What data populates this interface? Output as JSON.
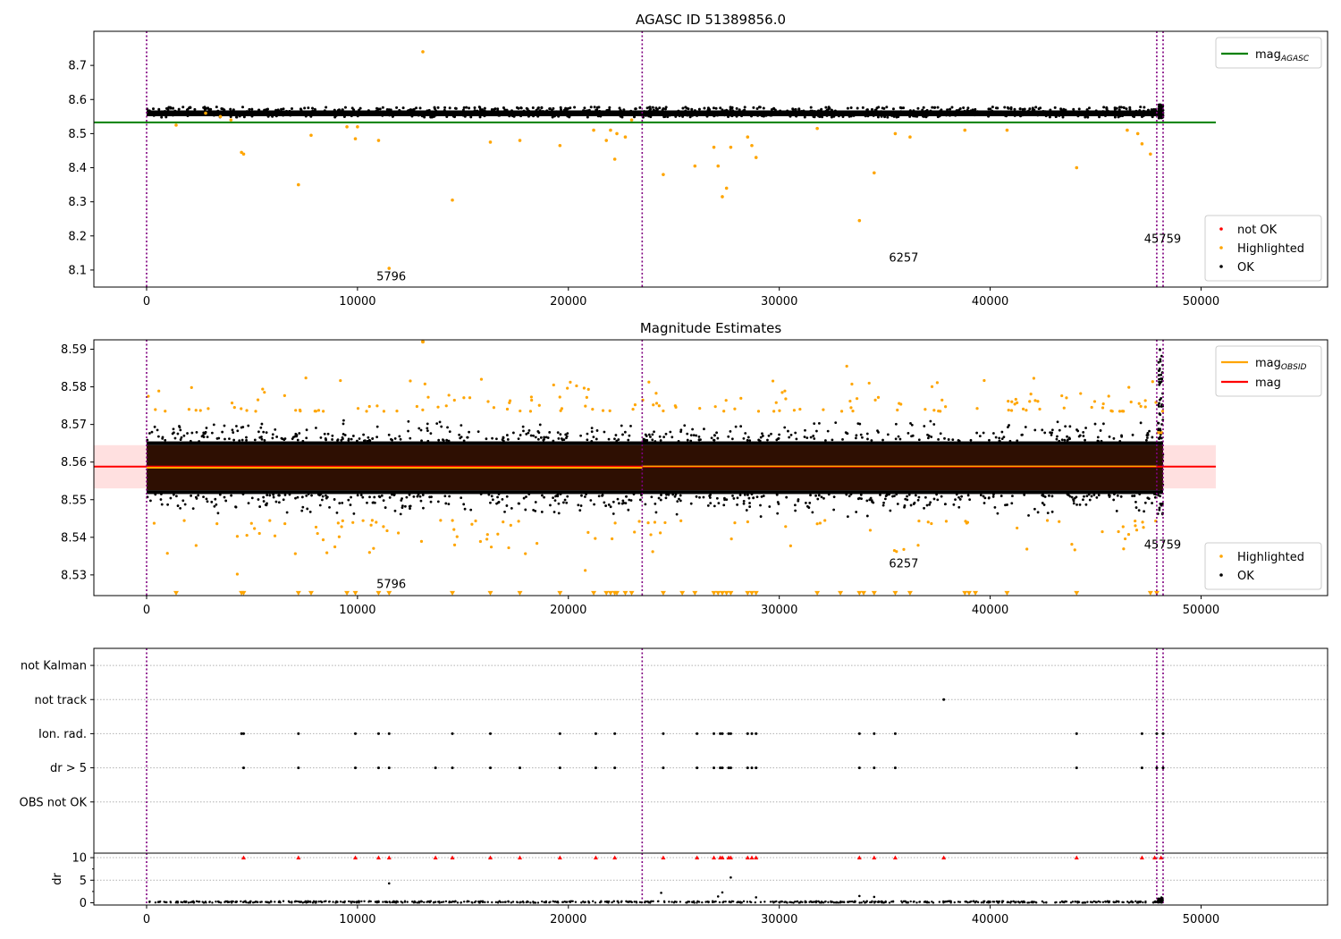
{
  "chart_data": [
    {
      "id": "p1",
      "type": "scatter",
      "title": "AGASC ID 51389856.0",
      "xlim": [
        -2500,
        56000
      ],
      "ylim": [
        8.05,
        8.8
      ],
      "x_ticks": [
        0,
        10000,
        20000,
        30000,
        40000,
        50000
      ],
      "x_tick_labels": [
        "0",
        "10000",
        "20000",
        "30000",
        "40000",
        "50000"
      ],
      "y_ticks": [
        8.1,
        8.2,
        8.3,
        8.4,
        8.5,
        8.6,
        8.7
      ],
      "y_tick_labels": [
        "8.1",
        "8.2",
        "8.3",
        "8.4",
        "8.5",
        "8.6",
        "8.7"
      ],
      "band": {
        "x0": 0,
        "x1": 48200,
        "y0": 8.548,
        "y1": 8.578
      },
      "vlines": [
        0,
        23500,
        47900,
        48200
      ],
      "hlines": [
        {
          "y": 8.533,
          "x0": -2500,
          "x1": 50700,
          "color": "#008000",
          "width": 2
        }
      ],
      "annotations": [
        {
          "text": "5796",
          "x": 10900,
          "y": 8.07
        },
        {
          "text": "6257",
          "x": 35200,
          "y": 8.125
        },
        {
          "text": "45759",
          "x": 47300,
          "y": 8.18
        }
      ],
      "highlighted": {
        "x": [
          1400,
          2800,
          3500,
          4000,
          4500,
          4600,
          7200,
          7800,
          9500,
          9900,
          10000,
          11000,
          11500,
          13100,
          14500,
          16300,
          17700,
          19600,
          21200,
          21800,
          22000,
          22200,
          22300,
          22700,
          23000,
          24500,
          26000,
          26900,
          27100,
          27300,
          27500,
          27700,
          28500,
          28700,
          28900,
          31800,
          33800,
          34500,
          35500,
          36200,
          38800,
          40800,
          44100,
          46500,
          47000,
          47200,
          47600
        ],
        "y": [
          8.525,
          8.56,
          8.55,
          8.54,
          8.445,
          8.44,
          8.35,
          8.495,
          8.52,
          8.485,
          8.52,
          8.48,
          8.105,
          8.74,
          8.305,
          8.475,
          8.48,
          8.465,
          8.51,
          8.48,
          8.51,
          8.425,
          8.5,
          8.49,
          8.54,
          8.38,
          8.405,
          8.46,
          8.405,
          8.315,
          8.34,
          8.46,
          8.49,
          8.465,
          8.43,
          8.515,
          8.245,
          8.385,
          8.5,
          8.49,
          8.51,
          8.51,
          8.4,
          8.51,
          8.5,
          8.47,
          8.44
        ]
      },
      "legend_main": {
        "entries": [
          "mag_AGASC"
        ],
        "colors": [
          "#008000"
        ],
        "placement": "upper right"
      },
      "legend_points": {
        "entries": [
          "not OK",
          "Highlighted",
          "OK"
        ],
        "colors": [
          "#ff0000",
          "#ffa500",
          "#000000"
        ],
        "placement": "lower right"
      }
    },
    {
      "id": "p2",
      "type": "scatter",
      "title": "Magnitude Estimates",
      "xlim": [
        -2500,
        56000
      ],
      "ylim": [
        8.5245,
        8.5925
      ],
      "x_ticks": [
        0,
        10000,
        20000,
        30000,
        40000,
        50000
      ],
      "x_tick_labels": [
        "0",
        "10000",
        "20000",
        "30000",
        "40000",
        "50000"
      ],
      "y_ticks": [
        8.53,
        8.54,
        8.55,
        8.56,
        8.57,
        8.58,
        8.59
      ],
      "y_tick_labels": [
        "8.53",
        "8.54",
        "8.55",
        "8.56",
        "8.57",
        "8.58",
        "8.59"
      ],
      "band": {
        "x0": 0,
        "x1": 48200,
        "y0": 8.5525,
        "y1": 8.5645
      },
      "pink_band": {
        "x0": -2500,
        "x1": 50700,
        "y0": 8.553,
        "y1": 8.5645
      },
      "vlines": [
        0,
        23500,
        47900,
        48200
      ],
      "hlines": [
        {
          "y": 8.5588,
          "x0": -2500,
          "x1": 50700,
          "color": "#ff0000",
          "width": 2
        },
        {
          "y": 8.5585,
          "x0": 0,
          "x1": 23500,
          "color": "#ffa500",
          "width": 2
        },
        {
          "y": 8.5589,
          "x0": 23500,
          "x1": 47900,
          "color": "#ffa500",
          "width": 1.5
        },
        {
          "y": 8.5678,
          "x0": 47900,
          "x1": 48200,
          "color": "#ffa500",
          "width": 3
        }
      ],
      "annotations": [
        {
          "text": "5796",
          "x": 10900,
          "y": 8.5265
        },
        {
          "text": "6257",
          "x": 35200,
          "y": 8.532
        },
        {
          "text": "45759",
          "x": 47300,
          "y": 8.537
        }
      ],
      "lower_limit_markers": {
        "y": 8.525,
        "x": [
          1400,
          4500,
          4600,
          7200,
          7800,
          9500,
          9900,
          11000,
          11500,
          14500,
          16300,
          17700,
          19600,
          21200,
          21800,
          22000,
          22200,
          22300,
          22700,
          23000,
          24500,
          25400,
          26000,
          26900,
          27100,
          27300,
          27500,
          27700,
          28500,
          28700,
          28900,
          31800,
          32900,
          33800,
          34000,
          34500,
          35500,
          36200,
          38800,
          39000,
          39300,
          40800,
          44100,
          47600,
          47900
        ]
      },
      "legend_main": {
        "entries": [
          "mag_OBSID",
          "mag"
        ],
        "colors": [
          "#ffa500",
          "#ff0000"
        ],
        "placement": "upper right"
      },
      "legend_points": {
        "entries": [
          "Highlighted",
          "OK"
        ],
        "colors": [
          "#ffa500",
          "#000000"
        ],
        "placement": "lower right"
      }
    },
    {
      "id": "p3",
      "type": "scatter",
      "title": "",
      "xlim": [
        -2500,
        56000
      ],
      "ylim": [
        -0.5,
        5.5
      ],
      "y_ticks": [
        1,
        2,
        3,
        4,
        5
      ],
      "y_tick_labels": [
        "OBS not OK",
        "dr > 5",
        "Ion. rad.",
        "not track",
        "not Kalman"
      ],
      "vlines": [
        0,
        23500,
        47900,
        48200
      ],
      "flag_rows": [
        {
          "row": 2,
          "x": [
            4600,
            7200,
            9900,
            11000,
            11500,
            13700,
            14500,
            16300,
            17700,
            19600,
            21300,
            22200,
            24500,
            26100,
            26900,
            27200,
            27300,
            27600,
            27700,
            28500,
            28700,
            28900,
            33800,
            34500,
            35500,
            44100,
            47200,
            47900,
            48200
          ]
        },
        {
          "row": 3,
          "x": [
            4500,
            4600,
            7200,
            9900,
            11000,
            11500,
            14500,
            16300,
            19600,
            21300,
            22200,
            24500,
            26100,
            26900,
            27200,
            27300,
            27600,
            27700,
            28500,
            28700,
            28900,
            33800,
            34500,
            35500,
            44100,
            47200,
            47900,
            48200
          ]
        },
        {
          "row": 4,
          "x": [
            37800
          ]
        }
      ]
    },
    {
      "id": "p4",
      "type": "scatter",
      "title": "",
      "ylabel": "dr",
      "xlim": [
        -2500,
        56000
      ],
      "ylim": [
        -0.5,
        11
      ],
      "x_ticks": [
        0,
        10000,
        20000,
        30000,
        40000,
        50000
      ],
      "x_tick_labels": [
        "0",
        "10000",
        "20000",
        "30000",
        "40000",
        "50000"
      ],
      "y_ticks": [
        0,
        5,
        10
      ],
      "y_tick_labels": [
        "0",
        "5",
        "10"
      ],
      "vlines": [
        0,
        23500,
        47900,
        48200
      ],
      "capped_points": {
        "y": 10,
        "x": [
          4600,
          7200,
          9900,
          11000,
          11500,
          13700,
          14500,
          16300,
          17700,
          19600,
          21300,
          22200,
          24500,
          26100,
          26900,
          27200,
          27300,
          27600,
          27700,
          28500,
          28700,
          28900,
          33800,
          34500,
          35500,
          37800,
          44100,
          47200,
          47800,
          48100
        ]
      },
      "scatter_points": {
        "x": [
          11500,
          24400,
          27100,
          27300,
          27700,
          28900,
          33800,
          34500
        ],
        "y": [
          4.3,
          2.2,
          1.4,
          2.3,
          5.6,
          1.2,
          1.5,
          1.3
        ]
      }
    }
  ]
}
